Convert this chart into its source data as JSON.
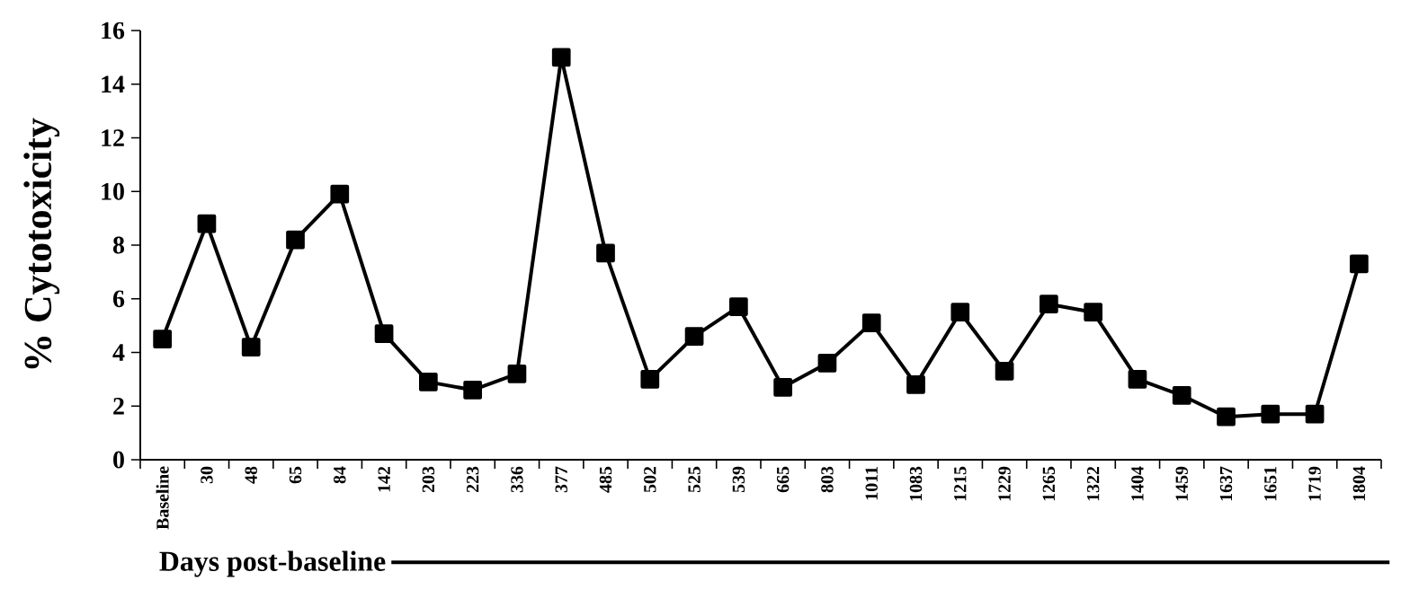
{
  "chart_data": {
    "type": "line",
    "ylabel": "% Cytotoxicity",
    "xlabel": "Days post-baseline",
    "categories": [
      "Baseline",
      "30",
      "48",
      "65",
      "84",
      "142",
      "203",
      "223",
      "336",
      "377",
      "485",
      "502",
      "525",
      "539",
      "665",
      "803",
      "1011",
      "1083",
      "1215",
      "1229",
      "1265",
      "1322",
      "1404",
      "1459",
      "1637",
      "1651",
      "1719",
      "1804"
    ],
    "series": [
      {
        "color": "#000000",
        "values": [
          4.5,
          8.8,
          4.2,
          8.2,
          9.9,
          4.7,
          2.9,
          2.6,
          3.2,
          15.0,
          7.7,
          3.0,
          4.6,
          5.7,
          2.7,
          3.6,
          5.1,
          2.8,
          5.5,
          3.3,
          5.8,
          5.5,
          3.0,
          2.4,
          1.6,
          1.7,
          1.7,
          7.3
        ]
      }
    ],
    "ylim": [
      0,
      16
    ],
    "yticks": [
      0,
      2,
      4,
      6,
      8,
      10,
      12,
      14,
      16
    ],
    "marker": "square",
    "line_style": "solid"
  }
}
